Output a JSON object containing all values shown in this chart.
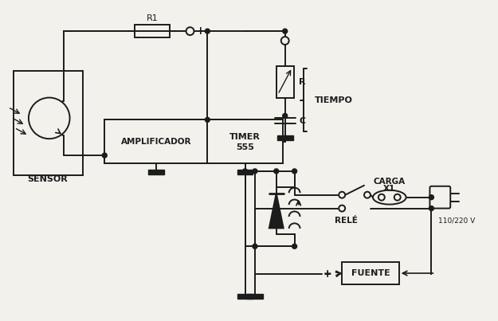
{
  "bg": "#f2f1ec",
  "lc": "#1c1c1c",
  "lw": 1.4,
  "figsize": [
    6.25,
    4.03
  ],
  "dpi": 100,
  "sensor_label": "SENSOR",
  "amp_label": "AMPLIFICADOR",
  "timer_line1": "TIMER",
  "timer_line2": "555",
  "r1_label": "R1",
  "plus_label": "+",
  "r_label": "R",
  "c_label": "C",
  "tiempo_label": "TIEMPO",
  "rele_label": "RELÉ",
  "carga_line1": "CARGA",
  "carga_line2": "X1",
  "v_label": "110/220 V",
  "fuente_label": "FUENTE"
}
